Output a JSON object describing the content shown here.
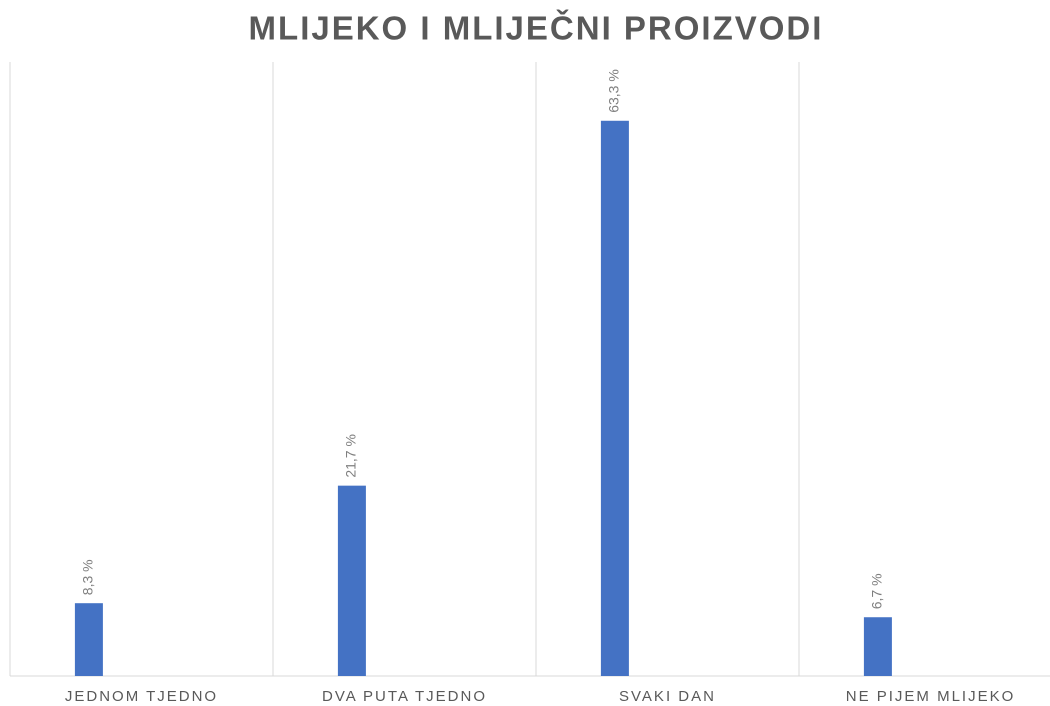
{
  "chart_data": {
    "type": "bar",
    "title": "MLIJEKO I MLIJEČNI PROIZVODI",
    "categories": [
      "JEDNOM TJEDNO",
      "DVA PUTA TJEDNO",
      "SVAKI DAN",
      "NE PIJEM MLIJEKO"
    ],
    "values": [
      8.3,
      21.7,
      63.3,
      6.7
    ],
    "value_labels": [
      "8,3 %",
      "21,7 %",
      "63,3 %",
      "6,7 %"
    ],
    "color": "#4472c4",
    "ylim": [
      0,
      70
    ]
  }
}
